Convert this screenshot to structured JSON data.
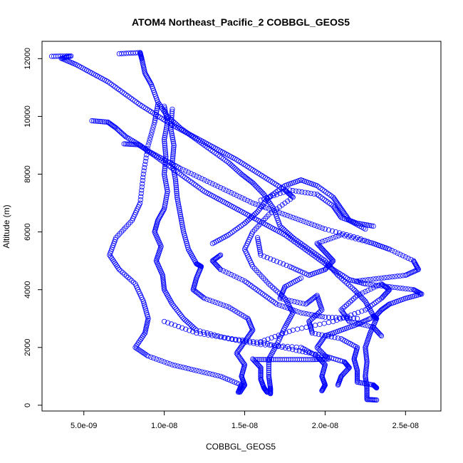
{
  "chart_data": {
    "type": "scatter",
    "title": "ATOM4 Northeast_Pacific_2 COBBGL_GEOS5",
    "xlabel": "COBBGL_GEOS5",
    "ylabel": "Altitude (m)",
    "xlim": [
      2.4e-09,
      2.72e-08
    ],
    "ylim": [
      -200,
      12600
    ],
    "x_ticks": [
      {
        "value": 5e-09,
        "label": "5.0e-09"
      },
      {
        "value": 1e-08,
        "label": "1.0e-08"
      },
      {
        "value": 1.5e-08,
        "label": "1.5e-08"
      },
      {
        "value": 2e-08,
        "label": "2.0e-08"
      },
      {
        "value": 2.5e-08,
        "label": "2.5e-08"
      }
    ],
    "y_ticks": [
      {
        "value": 0,
        "label": "0"
      },
      {
        "value": 2000,
        "label": "2000"
      },
      {
        "value": 4000,
        "label": "4000"
      },
      {
        "value": 6000,
        "label": "6000"
      },
      {
        "value": 8000,
        "label": "8000"
      },
      {
        "value": 10000,
        "label": "10000"
      },
      {
        "value": 12000,
        "label": "12000"
      }
    ],
    "marker": "open-circle",
    "color": "#0000ff",
    "grid": false,
    "series": [
      {
        "points": [
          [
            3e-09,
            12080
          ],
          [
            4.2e-09,
            12090
          ],
          [
            3.6e-09,
            12010
          ],
          [
            4.5e-09,
            11800
          ],
          [
            5.5e-09,
            11500
          ],
          [
            6.5e-09,
            11200
          ],
          [
            7.5e-09,
            10800
          ],
          [
            8.5e-09,
            10400
          ],
          [
            9.5e-09,
            10050
          ],
          [
            1.05e-08,
            9700
          ],
          [
            1.15e-08,
            9400
          ],
          [
            1.25e-08,
            9100
          ],
          [
            1.35e-08,
            8800
          ],
          [
            1.45e-08,
            8500
          ],
          [
            1.55e-08,
            8150
          ],
          [
            1.65e-08,
            7800
          ],
          [
            1.75e-08,
            7450
          ],
          [
            1.8e-08,
            7200
          ],
          [
            1.65e-08,
            6600
          ],
          [
            1.55e-08,
            6000
          ],
          [
            1.5e-08,
            5400
          ],
          [
            1.55e-08,
            4800
          ],
          [
            1.65e-08,
            4200
          ],
          [
            1.75e-08,
            3700
          ],
          [
            1.8e-08,
            3200
          ],
          [
            1.75e-08,
            2700
          ],
          [
            1.7e-08,
            2100
          ],
          [
            1.65e-08,
            1600
          ],
          [
            1.65e-08,
            1000
          ],
          [
            1.66e-08,
            600
          ],
          [
            1.66e-08,
            400
          ]
        ]
      },
      {
        "points": [
          [
            7.2e-09,
            12170
          ],
          [
            8.5e-09,
            12210
          ],
          [
            8.6e-09,
            12000
          ],
          [
            8.8e-09,
            11500
          ],
          [
            9.2e-09,
            11100
          ],
          [
            9.6e-09,
            10500
          ],
          [
            1.02e-08,
            10000
          ],
          [
            1.1e-08,
            9600
          ],
          [
            1.2e-08,
            9200
          ],
          [
            1.3e-08,
            8800
          ],
          [
            1.4e-08,
            8400
          ],
          [
            1.48e-08,
            8000
          ],
          [
            1.55e-08,
            7700
          ],
          [
            1.62e-08,
            7300
          ],
          [
            1.68e-08,
            6800
          ],
          [
            1.72e-08,
            6200
          ],
          [
            1.8e-08,
            5800
          ],
          [
            1.9e-08,
            5400
          ],
          [
            2e-08,
            5000
          ],
          [
            2.08e-08,
            4500
          ],
          [
            2.18e-08,
            4000
          ],
          [
            2.25e-08,
            3600
          ],
          [
            2.3e-08,
            3100
          ],
          [
            2.32e-08,
            3000
          ],
          [
            2.28e-08,
            2500
          ],
          [
            2.25e-08,
            2000
          ],
          [
            2.26e-08,
            1500
          ],
          [
            2.25e-08,
            1000
          ],
          [
            2.26e-08,
            600
          ],
          [
            2.26e-08,
            200
          ],
          [
            2.32e-08,
            180
          ]
        ]
      },
      {
        "points": [
          [
            5.5e-09,
            9850
          ],
          [
            6.5e-09,
            9800
          ],
          [
            7e-09,
            9600
          ],
          [
            7.6e-09,
            9300
          ],
          [
            8.5e-09,
            9000
          ],
          [
            9.5e-09,
            8600
          ],
          [
            1.05e-08,
            8200
          ],
          [
            1.15e-08,
            7800
          ],
          [
            1.25e-08,
            7400
          ],
          [
            1.35e-08,
            7100
          ],
          [
            1.45e-08,
            6800
          ],
          [
            1.55e-08,
            6500
          ],
          [
            1.65e-08,
            6200
          ],
          [
            1.75e-08,
            5900
          ],
          [
            1.85e-08,
            5500
          ],
          [
            1.95e-08,
            5100
          ],
          [
            2.05e-08,
            4700
          ],
          [
            2.15e-08,
            4350
          ],
          [
            2.25e-08,
            4200
          ],
          [
            2.4e-08,
            4100
          ],
          [
            2.55e-08,
            4000
          ],
          [
            2.6e-08,
            3850
          ],
          [
            2.5e-08,
            3700
          ],
          [
            2.4e-08,
            3500
          ],
          [
            2.35e-08,
            3300
          ],
          [
            2.3e-08,
            3000
          ]
        ]
      },
      {
        "points": [
          [
            7.5e-09,
            9050
          ],
          [
            8.4e-09,
            9020
          ],
          [
            9e-09,
            8800
          ],
          [
            1e-08,
            8500
          ],
          [
            1.1e-08,
            8200
          ],
          [
            1.25e-08,
            7800
          ],
          [
            1.4e-08,
            7400
          ],
          [
            1.55e-08,
            7000
          ],
          [
            1.7e-08,
            6700
          ],
          [
            1.85e-08,
            6400
          ],
          [
            2e-08,
            6100
          ],
          [
            2.2e-08,
            5800
          ],
          [
            2.4e-08,
            5400
          ],
          [
            2.55e-08,
            5000
          ],
          [
            2.58e-08,
            4700
          ],
          [
            2.5e-08,
            4500
          ],
          [
            2.35e-08,
            4400
          ],
          [
            2.2e-08,
            4300
          ]
        ]
      },
      {
        "points": [
          [
            9.6e-09,
            10400
          ],
          [
            9.4e-09,
            9800
          ],
          [
            9e-09,
            9000
          ],
          [
            8.7e-09,
            8000
          ],
          [
            8.5e-09,
            7000
          ],
          [
            8e-09,
            6400
          ],
          [
            7e-09,
            5800
          ],
          [
            6.6e-09,
            5200
          ],
          [
            7.2e-09,
            4700
          ],
          [
            8.2e-09,
            4200
          ],
          [
            8.7e-09,
            3600
          ],
          [
            9e-09,
            3000
          ],
          [
            8.8e-09,
            2500
          ],
          [
            8.2e-09,
            2000
          ],
          [
            9e-09,
            1700
          ],
          [
            1.05e-08,
            1400
          ],
          [
            1.2e-08,
            1200
          ],
          [
            1.35e-08,
            1000
          ],
          [
            1.48e-08,
            700
          ],
          [
            1.46e-08,
            450
          ]
        ]
      },
      {
        "points": [
          [
            1e-08,
            10350
          ],
          [
            1.02e-08,
            9800
          ],
          [
            1e-08,
            9200
          ],
          [
            1.01e-08,
            8600
          ],
          [
            1e-08,
            8000
          ],
          [
            1.02e-08,
            7400
          ],
          [
            1e-08,
            6800
          ],
          [
            9.6e-09,
            6400
          ],
          [
            9.4e-09,
            6000
          ],
          [
            9.8e-09,
            5500
          ],
          [
            9.5e-09,
            5000
          ],
          [
            9.9e-09,
            4500
          ],
          [
            1e-08,
            4000
          ],
          [
            1.05e-08,
            3500
          ],
          [
            1.12e-08,
            3000
          ],
          [
            1.2e-08,
            2600
          ],
          [
            1.4e-08,
            2300
          ],
          [
            1.6e-08,
            2100
          ],
          [
            1.85e-08,
            2000
          ],
          [
            1.95e-08,
            1700
          ],
          [
            2e-08,
            1400
          ],
          [
            1.98e-08,
            1000
          ],
          [
            2e-08,
            700
          ],
          [
            1.98e-08,
            500
          ]
        ]
      },
      {
        "points": [
          [
            1.05e-08,
            10250
          ],
          [
            1.04e-08,
            9600
          ],
          [
            1.06e-08,
            9000
          ],
          [
            1.05e-08,
            8400
          ],
          [
            1.07e-08,
            7800
          ],
          [
            1.08e-08,
            7200
          ],
          [
            1.1e-08,
            6600
          ],
          [
            1.12e-08,
            6000
          ],
          [
            1.15e-08,
            5400
          ],
          [
            1.2e-08,
            4900
          ],
          [
            1.23e-08,
            4800
          ],
          [
            1.2e-08,
            4400
          ],
          [
            1.18e-08,
            4000
          ],
          [
            1.25e-08,
            3700
          ],
          [
            1.4e-08,
            3400
          ],
          [
            1.52e-08,
            3000
          ],
          [
            1.55e-08,
            2600
          ],
          [
            1.5e-08,
            2200
          ],
          [
            1.45e-08,
            1800
          ],
          [
            1.5e-08,
            1400
          ],
          [
            1.48e-08,
            1000
          ],
          [
            1.5e-08,
            700
          ],
          [
            1.47e-08,
            450
          ]
        ]
      },
      {
        "points": [
          [
            1.57e-08,
            1580
          ],
          [
            1.68e-08,
            1580
          ],
          [
            1.8e-08,
            1580
          ],
          [
            1.92e-08,
            1580
          ],
          [
            2.02e-08,
            1600
          ],
          [
            1.95e-08,
            2000
          ],
          [
            2e-08,
            2400
          ],
          [
            2.1e-08,
            2600
          ],
          [
            2.2e-08,
            2800
          ],
          [
            2.28e-08,
            3000
          ]
        ]
      },
      {
        "points": [
          [
            1.6e-08,
            2200
          ],
          [
            1.8e-08,
            2600
          ],
          [
            2.05e-08,
            2900
          ],
          [
            2.25e-08,
            3300
          ],
          [
            2.35e-08,
            3700
          ],
          [
            2.4e-08,
            4000
          ],
          [
            2.35e-08,
            4200
          ],
          [
            2.2e-08,
            3800
          ],
          [
            2.1e-08,
            3300
          ],
          [
            2.15e-08,
            2900
          ],
          [
            2.3e-08,
            2700
          ],
          [
            2.35e-08,
            2400
          ]
        ]
      },
      {
        "points": [
          [
            1.85e-08,
            4400
          ],
          [
            1.75e-08,
            4100
          ],
          [
            1.72e-08,
            3700
          ],
          [
            1.88e-08,
            3500
          ],
          [
            1.95e-08,
            3800
          ],
          [
            1.98e-08,
            3300
          ],
          [
            1.9e-08,
            2900
          ],
          [
            1.92e-08,
            2500
          ],
          [
            2.1e-08,
            2300
          ],
          [
            2.2e-08,
            2000
          ],
          [
            2.18e-08,
            1600
          ],
          [
            2.2e-08,
            1200
          ],
          [
            2.2e-08,
            800
          ],
          [
            2.3e-08,
            700
          ],
          [
            2.32e-08,
            600
          ]
        ]
      },
      {
        "points": [
          [
            1.58e-08,
            5800
          ],
          [
            1.6e-08,
            5200
          ],
          [
            1.78e-08,
            4800
          ],
          [
            1.9e-08,
            4500
          ],
          [
            2e-08,
            4700
          ],
          [
            2.05e-08,
            5000
          ],
          [
            2e-08,
            5300
          ],
          [
            1.95e-08,
            5600
          ],
          [
            2.1e-08,
            5900
          ],
          [
            2.3e-08,
            5600
          ],
          [
            2.4e-08,
            5400
          ]
        ]
      },
      {
        "points": [
          [
            1.3e-08,
            5600
          ],
          [
            1.4e-08,
            5900
          ],
          [
            1.5e-08,
            6300
          ],
          [
            1.58e-08,
            6700
          ],
          [
            1.65e-08,
            7200
          ],
          [
            1.75e-08,
            7600
          ],
          [
            1.85e-08,
            7800
          ],
          [
            1.95e-08,
            7600
          ],
          [
            2.05e-08,
            7200
          ],
          [
            2.1e-08,
            6800
          ],
          [
            2.15e-08,
            6400
          ],
          [
            2.25e-08,
            6100
          ]
        ]
      },
      {
        "points": [
          [
            1.35e-08,
            5200
          ],
          [
            1.3e-08,
            5000
          ],
          [
            1.35e-08,
            4700
          ],
          [
            1.5e-08,
            4300
          ],
          [
            1.6e-08,
            3900
          ],
          [
            1.7e-08,
            3500
          ],
          [
            1.85e-08,
            3200
          ],
          [
            2e-08,
            3050
          ],
          [
            2.2e-08,
            3000
          ]
        ]
      },
      {
        "points": [
          [
            1.6e-08,
            7100
          ],
          [
            1.78e-08,
            7450
          ],
          [
            1.95e-08,
            7300
          ],
          [
            2.05e-08,
            6900
          ],
          [
            2.1e-08,
            6500
          ],
          [
            2.2e-08,
            6300
          ],
          [
            2.3e-08,
            6200
          ]
        ]
      },
      {
        "points": [
          [
            1e-08,
            2900
          ],
          [
            1.2e-08,
            2500
          ],
          [
            1.42e-08,
            2300
          ],
          [
            1.62e-08,
            2150
          ],
          [
            1.82e-08,
            1900
          ],
          [
            2e-08,
            1700
          ],
          [
            2.12e-08,
            1500
          ],
          [
            2.15e-08,
            1300
          ],
          [
            2.1e-08,
            1000
          ],
          [
            2.08e-08,
            700
          ]
        ]
      },
      {
        "points": [
          [
            1.55e-08,
            1600
          ],
          [
            1.6e-08,
            1300
          ],
          [
            1.6e-08,
            900
          ],
          [
            1.62e-08,
            600
          ],
          [
            1.64e-08,
            450
          ]
        ]
      }
    ]
  }
}
